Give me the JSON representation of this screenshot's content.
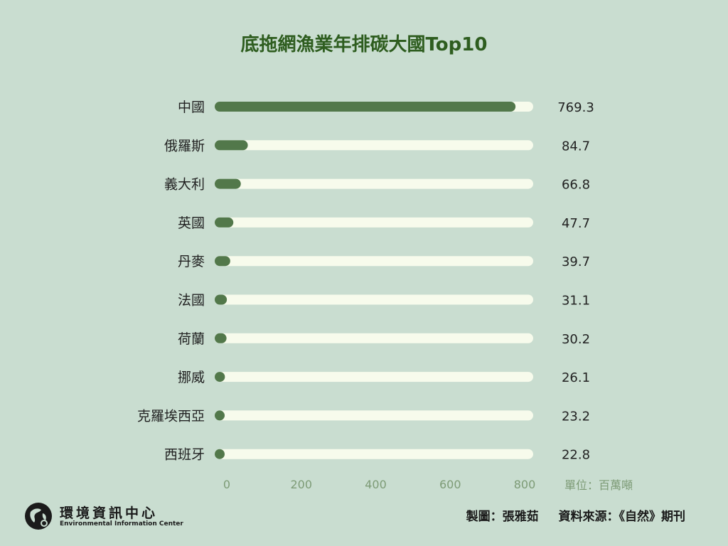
{
  "chart_data": {
    "type": "bar",
    "orientation": "horizontal",
    "title": "底拖網漁業年排碳大國Top10",
    "categories": [
      "中國",
      "俄羅斯",
      "義大利",
      "英國",
      "丹麥",
      "法國",
      "荷蘭",
      "挪威",
      "克羅埃西亞",
      "西班牙"
    ],
    "values": [
      769.3,
      84.7,
      66.8,
      47.7,
      39.7,
      31.1,
      30.2,
      26.1,
      23.2,
      22.8
    ],
    "value_labels": [
      "769.3",
      "84.7",
      "66.8",
      "47.7",
      "39.7",
      "31.1",
      "30.2",
      "26.1",
      "23.2",
      "22.8"
    ],
    "xlim": [
      0,
      800
    ],
    "x_ticks": [
      "0",
      "200",
      "400",
      "600",
      "800"
    ],
    "unit": "單位：百萬噸",
    "grid": false,
    "colors": {
      "bar": "#52784a",
      "track": "#f7fbec",
      "label": "#222222",
      "tick": "#7d9b76"
    }
  },
  "footer": {
    "org_name": "環境資訊中心",
    "org_name_en": "Environmental Information Center",
    "credit": "製圖：張雅茹",
    "source": "資料來源：《自然》期刊"
  },
  "icons": {
    "logo": "globe-logo-icon"
  }
}
